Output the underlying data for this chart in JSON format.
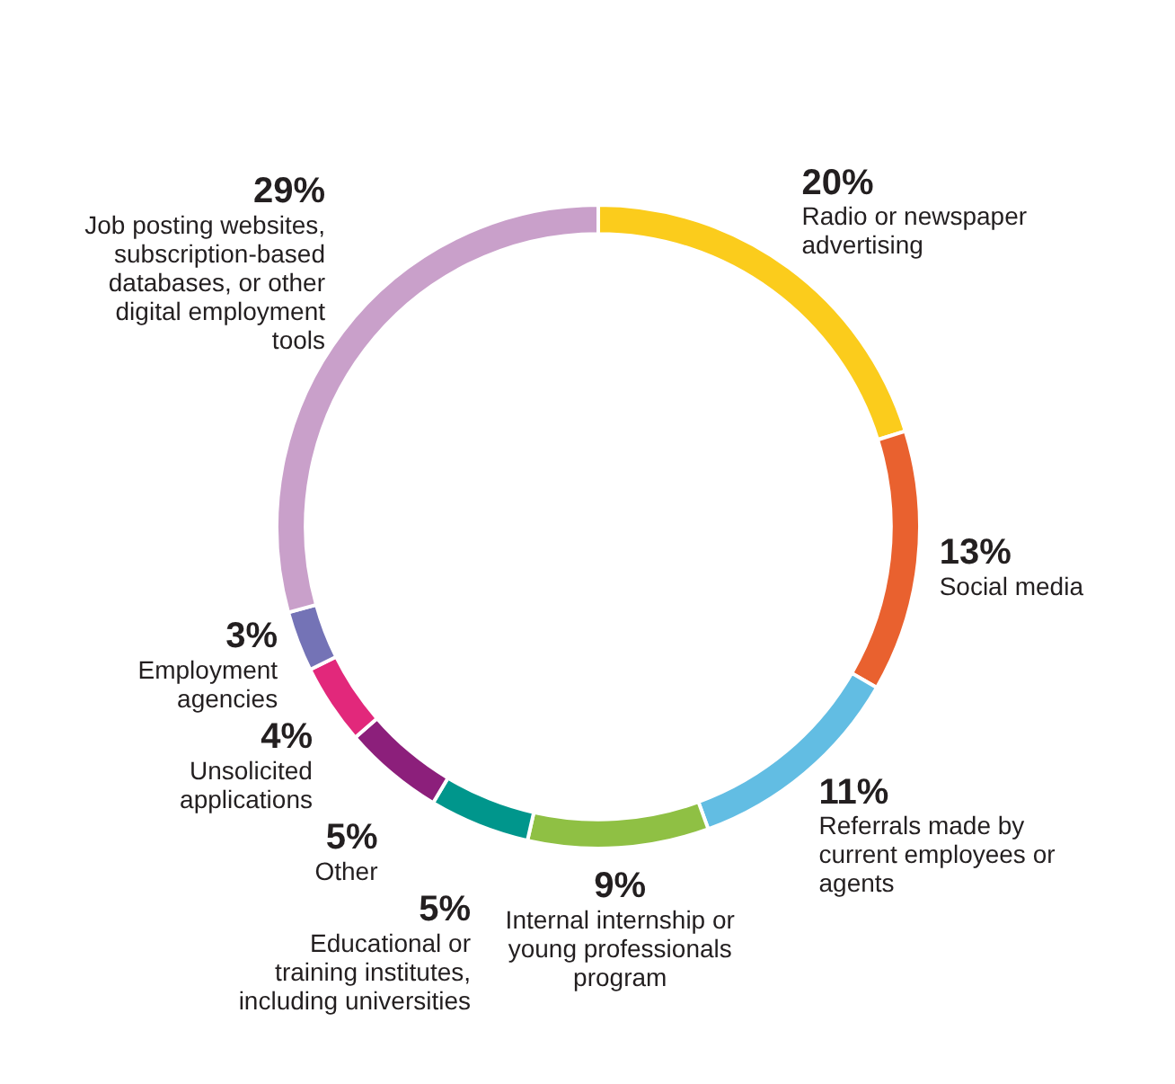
{
  "chart_data": {
    "type": "donut",
    "categories": [
      "Radio or newspaper advertising",
      "Social media",
      "Referrals made by current employees or agents",
      "Internal internship or young professionals program",
      "Educational or training institutes, including universities",
      "Other",
      "Unsolicited applications",
      "Employment agencies",
      "Job posting websites, subscription-based databases, or other digital employment tools"
    ],
    "values": [
      20,
      13,
      11,
      9,
      5,
      5,
      4,
      3,
      29
    ],
    "colors": [
      "#fbcc1c",
      "#e9612f",
      "#62bde3",
      "#8fc044",
      "#00968c",
      "#8c1f7b",
      "#e2287b",
      "#7473b6",
      "#c9a0ca"
    ],
    "value_labels": [
      "20%",
      "13%",
      "11%",
      "9%",
      "5%",
      "5%",
      "4%",
      "3%",
      "29%"
    ],
    "legend": false
  }
}
